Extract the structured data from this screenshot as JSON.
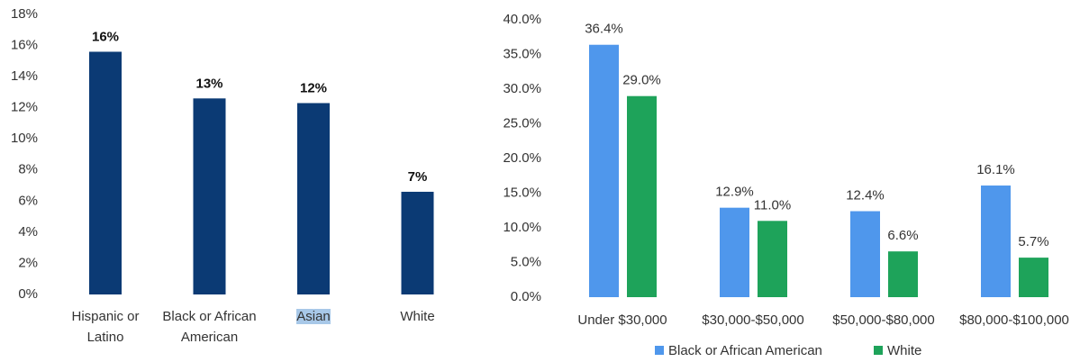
{
  "chart_data": [
    {
      "type": "bar",
      "categories": [
        "Hispanic or Latino",
        "Black or African American",
        "Asian",
        "White"
      ],
      "values": [
        15.6,
        12.6,
        12.3,
        6.6
      ],
      "value_labels": [
        "16%",
        "13%",
        "12%",
        "7%"
      ],
      "color": "#0b3a74",
      "ylim": [
        0,
        18
      ],
      "yticks": [
        {
          "value": 0,
          "label": "0%"
        },
        {
          "value": 2,
          "label": "2%"
        },
        {
          "value": 4,
          "label": "4%"
        },
        {
          "value": 6,
          "label": "6%"
        },
        {
          "value": 8,
          "label": "8%"
        },
        {
          "value": 10,
          "label": "10%"
        },
        {
          "value": 12,
          "label": "12%"
        },
        {
          "value": 14,
          "label": "14%"
        },
        {
          "value": 16,
          "label": "16%"
        },
        {
          "value": 18,
          "label": "18%"
        }
      ],
      "grid": false
    },
    {
      "type": "grouped_bar",
      "categories": [
        "Under $30,000",
        "$30,000-$50,000",
        "$50,000-$80,000",
        "$80,000-$100,000"
      ],
      "series": [
        {
          "name": "Black or African American",
          "color": "#4f97ec",
          "values": [
            36.4,
            12.9,
            12.4,
            16.1
          ],
          "value_labels": [
            "36.4%",
            "12.9%",
            "12.4%",
            "16.1%"
          ]
        },
        {
          "name": "White",
          "color": "#1ea35a",
          "values": [
            29.0,
            11.0,
            6.6,
            5.7
          ],
          "value_labels": [
            "29.0%",
            "11.0%",
            "6.6%",
            "5.7%"
          ]
        }
      ],
      "ylim": [
        0,
        40
      ],
      "yticks": [
        {
          "value": 0,
          "label": "0.0%"
        },
        {
          "value": 5,
          "label": "5.0%"
        },
        {
          "value": 10,
          "label": "10.0%"
        },
        {
          "value": 15,
          "label": "15.0%"
        },
        {
          "value": 20,
          "label": "20.0%"
        },
        {
          "value": 25,
          "label": "25.0%"
        },
        {
          "value": 30,
          "label": "30.0%"
        },
        {
          "value": 35,
          "label": "35.0%"
        },
        {
          "value": 40,
          "label": "40.0%"
        }
      ],
      "grid": false,
      "legend": "bottom"
    }
  ]
}
